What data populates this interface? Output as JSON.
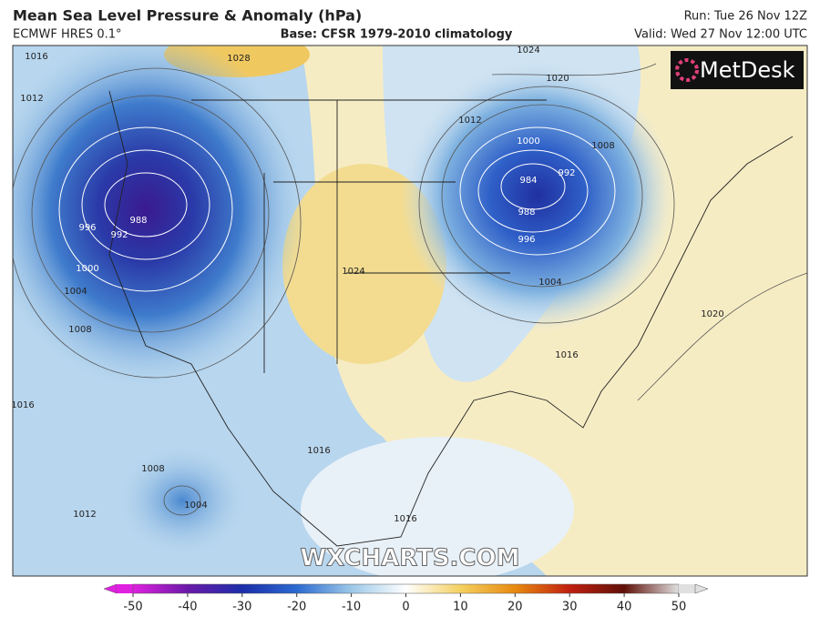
{
  "header": {
    "title": "Mean Sea Level Pressure & Anomaly (hPa)",
    "model": "ECMWF HRES 0.1°",
    "base": "Base: CFSR 1979-2010 climatology",
    "run": "Run: Tue 26 Nov 12Z",
    "valid": "Valid: Wed 27 Nov 12:00 UTC"
  },
  "logo": "MetDesk",
  "watermark": "WXCHARTS.COM",
  "isobar_labels": [
    1016,
    1012,
    1028,
    1024,
    1020,
    1012,
    1008,
    1000,
    984,
    992,
    988,
    996,
    1004,
    988,
    992,
    996,
    1000,
    1004,
    1008,
    1016,
    1008,
    1012,
    1004,
    1024,
    1016,
    1020,
    1016,
    1016
  ],
  "colorbar": {
    "lim": [
      -50,
      50
    ],
    "ticks": [
      -50,
      -40,
      -30,
      -20,
      -10,
      0,
      10,
      20,
      30,
      40,
      50
    ],
    "colors": [
      "#e020e0",
      "#6a1aa8",
      "#1c2ea8",
      "#2c6ad0",
      "#9cc8e8",
      "#ffffff",
      "#f4d060",
      "#e88a10",
      "#c02010",
      "#601008",
      "#e0e0e0"
    ]
  }
}
